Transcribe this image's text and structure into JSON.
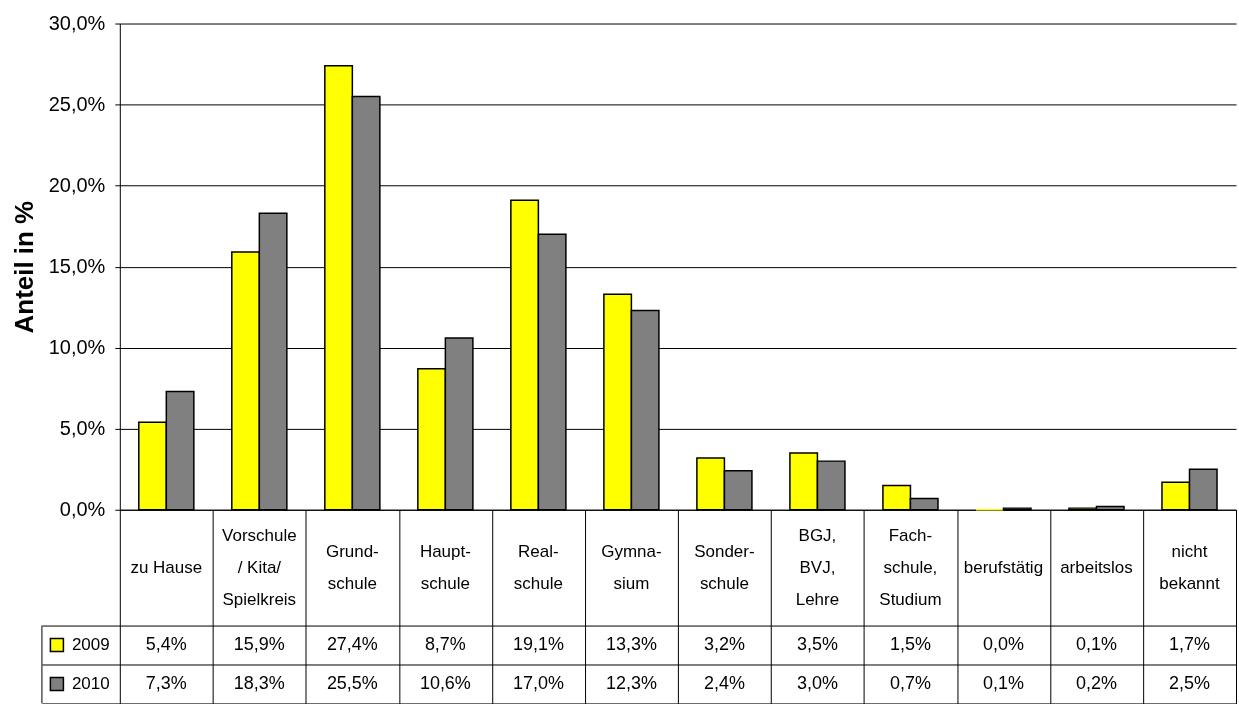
{
  "chart_data": {
    "type": "bar",
    "ylabel": "Anteil in %",
    "categories": [
      "zu Hause",
      "Vorschule\n/ Kita/\nSpielkreis",
      "Grund-\nschule",
      "Haupt-\nschule",
      "Real-\nschule",
      "Gymna-\nsium",
      "Sonder-\nschule",
      "BGJ,\nBVJ,\nLehre",
      "Fach-\nschule,\nStudium",
      "berufstätig",
      "arbeitslos",
      "nicht\nbekannt"
    ],
    "series": [
      {
        "name": "2009",
        "color": "#ffff00",
        "values": [
          5.4,
          15.9,
          27.4,
          8.7,
          19.1,
          13.3,
          3.2,
          3.5,
          1.5,
          0.0,
          0.1,
          1.7
        ],
        "value_labels": [
          "5,4%",
          "15,9%",
          "27,4%",
          "8,7%",
          "19,1%",
          "13,3%",
          "3,2%",
          "3,5%",
          "1,5%",
          "0,0%",
          "0,1%",
          "1,7%"
        ]
      },
      {
        "name": "2010",
        "color": "#808080",
        "values": [
          7.3,
          18.3,
          25.5,
          10.6,
          17.0,
          12.3,
          2.4,
          3.0,
          0.7,
          0.1,
          0.2,
          2.5
        ],
        "value_labels": [
          "7,3%",
          "18,3%",
          "25,5%",
          "10,6%",
          "17,0%",
          "12,3%",
          "2,4%",
          "3,0%",
          "0,7%",
          "0,1%",
          "0,2%",
          "2,5%"
        ]
      }
    ],
    "ylim": [
      0,
      30
    ],
    "yticks": [
      {
        "value": 0,
        "label": "0,0%"
      },
      {
        "value": 5,
        "label": "5,0%"
      },
      {
        "value": 10,
        "label": "10,0%"
      },
      {
        "value": 15,
        "label": "15,0%"
      },
      {
        "value": 20,
        "label": "20,0%"
      },
      {
        "value": 25,
        "label": "25,0%"
      },
      {
        "value": 30,
        "label": "30,0%"
      }
    ],
    "grid": "y",
    "legend": "bottom left"
  }
}
